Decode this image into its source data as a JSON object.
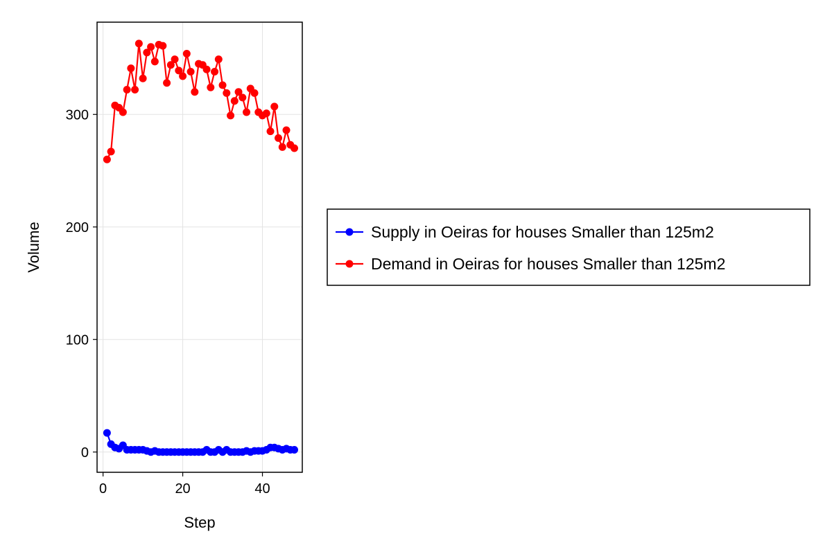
{
  "chart_data": {
    "type": "line",
    "title": "",
    "xlabel": "Step",
    "ylabel": "Volume",
    "xlim": [
      -1.5,
      50
    ],
    "ylim": [
      -18,
      382
    ],
    "xticks": [
      0,
      20,
      40
    ],
    "yticks": [
      0,
      100,
      200,
      300
    ],
    "grid": true,
    "legend_position": "right",
    "x": [
      1,
      2,
      3,
      4,
      5,
      6,
      7,
      8,
      9,
      10,
      11,
      12,
      13,
      14,
      15,
      16,
      17,
      18,
      19,
      20,
      21,
      22,
      23,
      24,
      25,
      26,
      27,
      28,
      29,
      30,
      31,
      32,
      33,
      34,
      35,
      36,
      37,
      38,
      39,
      40,
      41,
      42,
      43,
      44,
      45,
      46,
      47,
      48
    ],
    "series": [
      {
        "name": "Supply in Oeiras for houses Smaller than 125m2",
        "color": "#0000ff",
        "values": [
          17,
          7,
          4,
          3,
          6,
          2,
          2,
          2,
          2,
          2,
          1,
          0,
          1,
          0,
          0,
          0,
          0,
          0,
          0,
          0,
          0,
          0,
          0,
          0,
          0,
          2,
          0,
          0,
          2,
          0,
          2,
          0,
          0,
          0,
          0,
          1,
          0,
          1,
          1,
          1,
          2,
          4,
          4,
          3,
          2,
          3,
          2,
          2
        ]
      },
      {
        "name": "Demand in Oeiras for houses Smaller than 125m2",
        "color": "#ff0000",
        "values": [
          260,
          267,
          308,
          306,
          302,
          322,
          341,
          322,
          363,
          332,
          355,
          360,
          347,
          362,
          361,
          328,
          344,
          349,
          339,
          334,
          354,
          338,
          320,
          345,
          344,
          340,
          324,
          338,
          349,
          326,
          319,
          299,
          312,
          320,
          315,
          302,
          323,
          319,
          302,
          299,
          301,
          285,
          307,
          279,
          271,
          286,
          273,
          270
        ]
      }
    ]
  }
}
